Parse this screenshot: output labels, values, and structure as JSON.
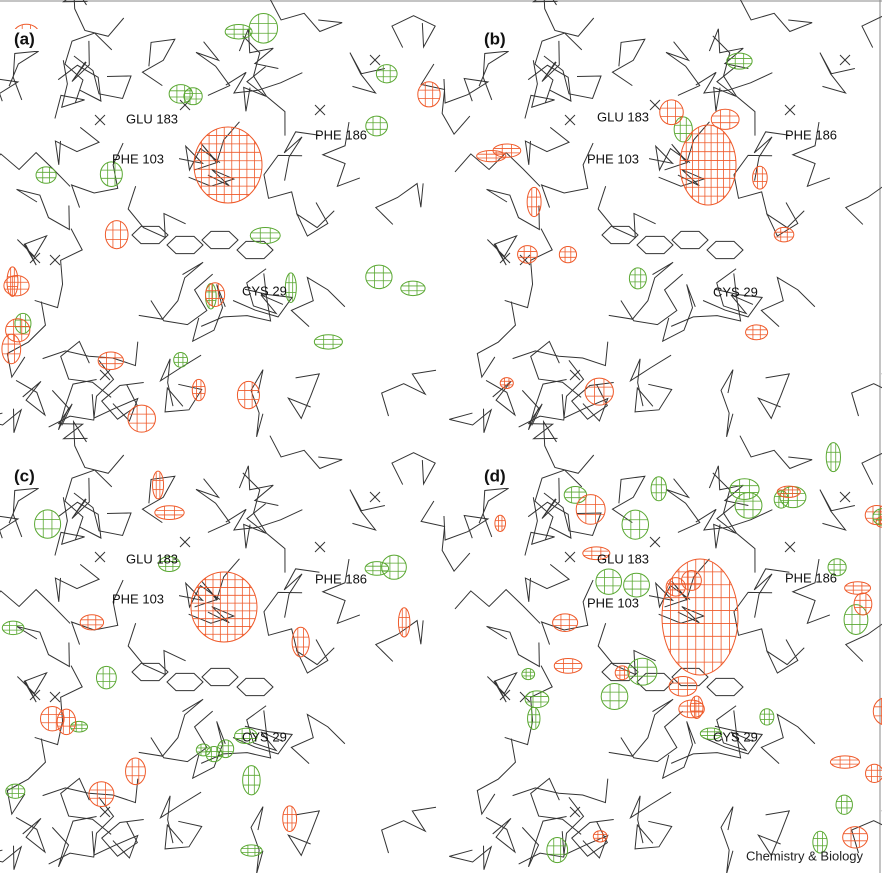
{
  "panels": [
    {
      "label": "(a)",
      "residues": [
        "GLU 183",
        "PHE 186",
        "PHE 103",
        "CYS 29"
      ]
    },
    {
      "label": "(b)",
      "residues": [
        "GLU 183",
        "PHE 186",
        "PHE 103",
        "CYS 29"
      ]
    },
    {
      "label": "(c)",
      "residues": [
        "GLU 183",
        "PHE 186",
        "PHE 103",
        "CYS 29"
      ]
    },
    {
      "label": "(d)",
      "residues": [
        "GLU 183",
        "PHE 186",
        "PHE 103",
        "CYS 29"
      ]
    }
  ],
  "credit": "Chemistry & Biology"
}
